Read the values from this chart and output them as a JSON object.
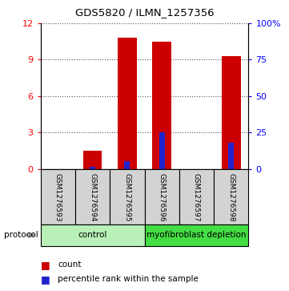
{
  "title": "GDS5820 / ILMN_1257356",
  "samples": [
    "GSM1276593",
    "GSM1276594",
    "GSM1276595",
    "GSM1276596",
    "GSM1276597",
    "GSM1276598"
  ],
  "counts": [
    0.0,
    1.5,
    10.8,
    10.5,
    0.0,
    9.3
  ],
  "percentile_ranks": [
    0.0,
    1.2,
    5.0,
    25.0,
    0.0,
    18.0
  ],
  "ylim_left": [
    0,
    12
  ],
  "ylim_right": [
    0,
    100
  ],
  "yticks_left": [
    0,
    3,
    6,
    9,
    12
  ],
  "yticks_right": [
    0,
    25,
    50,
    75,
    100
  ],
  "ytick_labels_right": [
    "0",
    "25",
    "50",
    "75",
    "100%"
  ],
  "bar_color": "#cc0000",
  "percentile_color": "#2222cc",
  "grid_color": "#000000",
  "groups": [
    {
      "label": "control",
      "start": 0,
      "end": 3,
      "color": "#b8f0b8"
    },
    {
      "label": "myofibroblast depletion",
      "start": 3,
      "end": 6,
      "color": "#44dd44"
    }
  ],
  "protocol_label": "protocol",
  "legend_count_label": "count",
  "legend_percentile_label": "percentile rank within the sample",
  "bar_width": 0.55,
  "background_color": "#ffffff",
  "plot_area_color": "#ffffff",
  "sample_cell_color": "#d3d3d3"
}
